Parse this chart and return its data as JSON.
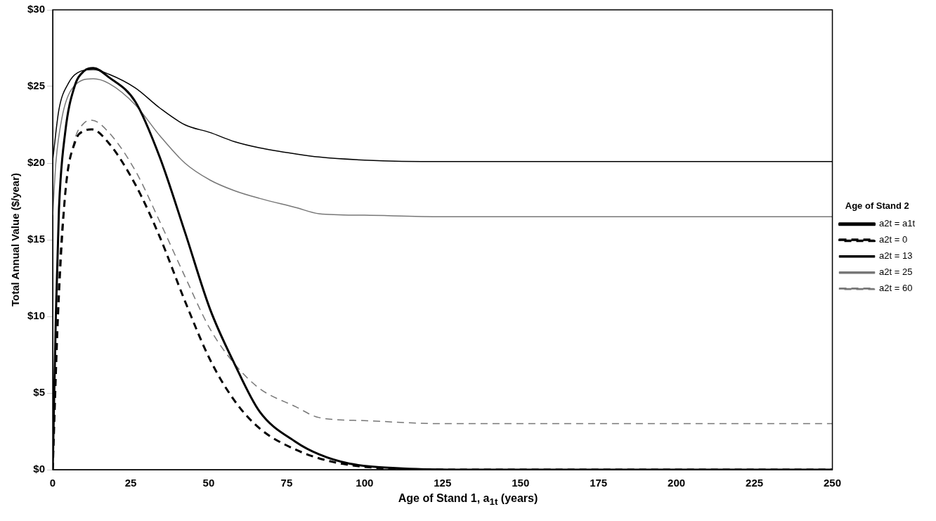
{
  "chart_data": {
    "type": "line",
    "xlabel": "Age of Stand 1, a$_{1t}$ (years)",
    "ylabel": "Total Annual Value ($/year)",
    "legend_title": "Age of Stand 2",
    "legend": "right",
    "grid": false,
    "marker": "none",
    "xlim": [
      0,
      250
    ],
    "xticks": [
      0,
      25,
      50,
      75,
      100,
      125,
      150,
      175,
      200,
      225,
      250
    ],
    "ylim": [
      0,
      30
    ],
    "yticks": [
      {
        "value": 0,
        "label": "$0"
      },
      {
        "value": 5,
        "label": "$5"
      },
      {
        "value": 10,
        "label": "$10"
      },
      {
        "value": 15,
        "label": "$15"
      },
      {
        "value": 20,
        "label": "$20"
      },
      {
        "value": 25,
        "label": "$25"
      },
      {
        "value": 30,
        "label": "$30"
      }
    ],
    "series": [
      {
        "name": "a2t = a1t",
        "color": "#000000",
        "line_style": "solid",
        "x": [
          0,
          1,
          2,
          4,
          7,
          10,
          13,
          18,
          26.5,
          34.3,
          42.4,
          50.4,
          58.3,
          66.3,
          78,
          85.4,
          95,
          110,
          130,
          250
        ],
        "values": [
          0,
          10,
          17,
          22,
          25,
          26,
          26.2,
          25.6,
          24,
          20.4,
          15.5,
          10.5,
          6.9,
          3.8,
          1.8,
          1,
          0.4,
          0.1,
          0,
          0
        ]
      },
      {
        "name": "a2t = 0",
        "color": "#000000",
        "line_style": "dashed",
        "x": [
          0,
          1.7,
          4.1,
          7.2,
          10,
          12.5,
          18,
          26.5,
          34.3,
          42.4,
          50.4,
          58.3,
          66.3,
          78,
          90,
          105,
          125,
          250
        ],
        "values": [
          0,
          10.1,
          18.2,
          21.4,
          22.1,
          22.2,
          21.3,
          18.6,
          15.2,
          11,
          7.2,
          4.5,
          2.7,
          1.3,
          0.5,
          0.1,
          0,
          0
        ]
      },
      {
        "name": "a2t = 13",
        "color": "#000000",
        "line_style": "solid",
        "x": [
          0,
          2,
          5,
          8,
          13,
          18,
          26.5,
          34.3,
          42.4,
          50.4,
          58.3,
          66.3,
          78,
          85.4,
          100,
          125,
          250
        ],
        "values": [
          20.2,
          23.5,
          25.2,
          25.9,
          26.1,
          25.8,
          24.9,
          23.6,
          22.5,
          22,
          21.4,
          21,
          20.6,
          20.4,
          20.2,
          20.1,
          20.1
        ]
      },
      {
        "name": "a2t = 25",
        "color": "#777777",
        "line_style": "solid",
        "x": [
          0,
          1,
          3,
          6,
          13,
          18,
          26.5,
          34.3,
          42.4,
          50.4,
          58.3,
          66.3,
          78,
          85.4,
          100,
          125,
          250
        ],
        "values": [
          16.6,
          20,
          23,
          24.8,
          25.5,
          25.2,
          23.8,
          21.8,
          20,
          18.9,
          18.2,
          17.7,
          17.1,
          16.7,
          16.6,
          16.5,
          16.5
        ]
      },
      {
        "name": "a2t = 60",
        "color": "#777777",
        "line_style": "dashed",
        "x": [
          0,
          1,
          2,
          4,
          7,
          10,
          12.5,
          18,
          26.5,
          34.3,
          42.4,
          50.4,
          58.3,
          66.3,
          78,
          85.4,
          100,
          125,
          250
        ],
        "values": [
          0,
          8,
          13,
          18,
          21.5,
          22.6,
          22.8,
          22,
          19.5,
          16.2,
          12.6,
          9.2,
          6.9,
          5.3,
          4.1,
          3.4,
          3.2,
          3,
          3
        ]
      }
    ]
  }
}
